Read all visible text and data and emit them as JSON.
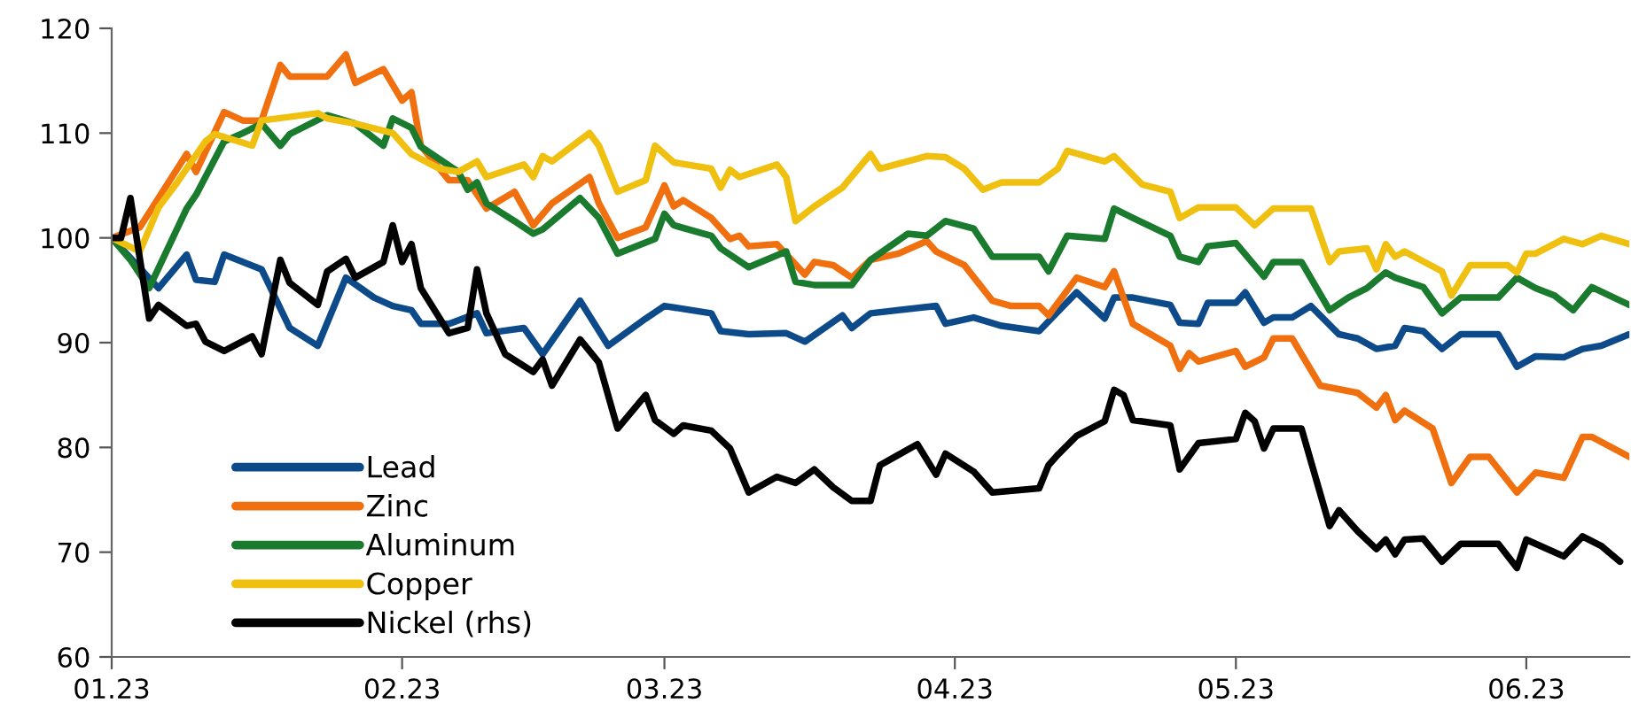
{
  "chart_data": {
    "type": "line",
    "xlim": [
      "2023-01-01",
      "2023-06-12"
    ],
    "xticks": [
      {
        "value": "2023-01-01",
        "label": "01.23"
      },
      {
        "value": "2023-02-01",
        "label": "02.23"
      },
      {
        "value": "2023-03-01",
        "label": "03.23"
      },
      {
        "value": "2023-04-01",
        "label": "04.23"
      },
      {
        "value": "2023-05-01",
        "label": "05.23"
      },
      {
        "value": "2023-06-01",
        "label": "06.23"
      }
    ],
    "ylim": [
      60,
      120
    ],
    "yticks": [
      60,
      70,
      80,
      90,
      100,
      110,
      120
    ],
    "grid": false,
    "legend": "bottom left",
    "marker": "none",
    "line_style": "solid",
    "series": [
      {
        "name": "Lead",
        "color": "#0d4a8a",
        "x": [
          "2023-01-01",
          "2023-01-06",
          "2023-01-09",
          "2023-01-10",
          "2023-01-12",
          "2023-01-13",
          "2023-01-17",
          "2023-01-20",
          "2023-01-23",
          "2023-01-26",
          "2023-01-29",
          "2023-01-31",
          "2023-02-02",
          "2023-02-03",
          "2023-02-06",
          "2023-02-09",
          "2023-02-10",
          "2023-02-14",
          "2023-02-16",
          "2023-02-20",
          "2023-02-23",
          "2023-02-27",
          "2023-03-01",
          "2023-03-06",
          "2023-03-07",
          "2023-03-10",
          "2023-03-14",
          "2023-03-16",
          "2023-03-20",
          "2023-03-21",
          "2023-03-23",
          "2023-03-30",
          "2023-03-31",
          "2023-04-03",
          "2023-04-06",
          "2023-04-10",
          "2023-04-14",
          "2023-04-17",
          "2023-04-18",
          "2023-04-20",
          "2023-04-24",
          "2023-04-25",
          "2023-04-27",
          "2023-04-28",
          "2023-05-01",
          "2023-05-02",
          "2023-05-04",
          "2023-05-05",
          "2023-05-07",
          "2023-05-09",
          "2023-05-12",
          "2023-05-14",
          "2023-05-16",
          "2023-05-18",
          "2023-05-19",
          "2023-05-21",
          "2023-05-23",
          "2023-05-25",
          "2023-05-29",
          "2023-05-31",
          "2023-06-02",
          "2023-06-05",
          "2023-06-07",
          "2023-06-09",
          "2023-06-12"
        ],
        "values": [
          100,
          95.2,
          98.4,
          96,
          95.8,
          98.4,
          97,
          91.4,
          89.7,
          96.2,
          94.3,
          93.5,
          93.1,
          91.8,
          91.8,
          92.8,
          90.9,
          91.4,
          88.9,
          94,
          89.7,
          92.3,
          93.5,
          92.8,
          91.1,
          90.8,
          90.9,
          90.1,
          92.6,
          91.4,
          92.8,
          93.5,
          91.8,
          92.4,
          91.6,
          91.1,
          94.8,
          92.3,
          94.3,
          94.3,
          93.6,
          91.9,
          91.8,
          93.8,
          93.8,
          94.8,
          91.9,
          92.4,
          92.4,
          93.5,
          90.8,
          90.4,
          89.4,
          89.7,
          91.4,
          91.1,
          89.4,
          90.8,
          90.8,
          87.7,
          88.7,
          88.6,
          89.4,
          89.7,
          90.8
        ]
      },
      {
        "name": "Zinc",
        "color": "#f07010",
        "x": [
          "2023-01-01",
          "2023-01-04",
          "2023-01-09",
          "2023-01-10",
          "2023-01-13",
          "2023-01-15",
          "2023-01-17",
          "2023-01-19",
          "2023-01-20",
          "2023-01-24",
          "2023-01-26",
          "2023-01-27",
          "2023-01-30",
          "2023-02-01",
          "2023-02-02",
          "2023-02-03",
          "2023-02-06",
          "2023-02-08",
          "2023-02-10",
          "2023-02-13",
          "2023-02-15",
          "2023-02-17",
          "2023-02-21",
          "2023-02-22",
          "2023-02-24",
          "2023-02-27",
          "2023-03-01",
          "2023-03-02",
          "2023-03-03",
          "2023-03-06",
          "2023-03-08",
          "2023-03-09",
          "2023-03-10",
          "2023-03-13",
          "2023-03-16",
          "2023-03-17",
          "2023-03-19",
          "2023-03-21",
          "2023-03-23",
          "2023-03-26",
          "2023-03-29",
          "2023-03-30",
          "2023-04-02",
          "2023-04-05",
          "2023-04-07",
          "2023-04-10",
          "2023-04-11",
          "2023-04-14",
          "2023-04-17",
          "2023-04-18",
          "2023-04-20",
          "2023-04-24",
          "2023-04-25",
          "2023-04-26",
          "2023-04-27",
          "2023-05-01",
          "2023-05-02",
          "2023-05-04",
          "2023-05-05",
          "2023-05-07",
          "2023-05-10",
          "2023-05-14",
          "2023-05-16",
          "2023-05-17",
          "2023-05-18",
          "2023-05-19",
          "2023-05-22",
          "2023-05-24",
          "2023-05-26",
          "2023-05-28",
          "2023-05-31",
          "2023-06-02",
          "2023-06-05",
          "2023-06-07",
          "2023-06-08",
          "2023-06-12"
        ],
        "values": [
          100,
          101,
          108,
          106.3,
          112,
          111.2,
          111.2,
          116.5,
          115.4,
          115.4,
          117.5,
          114.8,
          116.1,
          113.1,
          113.9,
          108.8,
          105.5,
          105.5,
          102.8,
          104.4,
          101.2,
          103.3,
          105.8,
          103.3,
          100,
          101,
          105,
          103,
          103.6,
          101.9,
          99.9,
          100.2,
          99.2,
          99.4,
          96.5,
          97.7,
          97.4,
          96.2,
          97.9,
          98.5,
          99.7,
          98.7,
          97.4,
          94,
          93.5,
          93.5,
          92.6,
          96.2,
          95.3,
          96.8,
          91.8,
          89.7,
          87.5,
          89,
          88.2,
          89.2,
          87.7,
          88.6,
          90.4,
          90.4,
          85.9,
          85.2,
          83.8,
          85,
          82.6,
          83.5,
          81.8,
          76.6,
          79.1,
          79.1,
          75.7,
          77.6,
          77.1,
          81,
          81,
          79.1
        ]
      },
      {
        "name": "Aluminum",
        "color": "#1a7a2e",
        "x": [
          "2023-01-01",
          "2023-01-03",
          "2023-01-05",
          "2023-01-09",
          "2023-01-10",
          "2023-01-13",
          "2023-01-15",
          "2023-01-17",
          "2023-01-19",
          "2023-01-20",
          "2023-01-24",
          "2023-01-27",
          "2023-01-30",
          "2023-01-31",
          "2023-02-02",
          "2023-02-03",
          "2023-02-07",
          "2023-02-08",
          "2023-02-09",
          "2023-02-10",
          "2023-02-13",
          "2023-02-15",
          "2023-02-16",
          "2023-02-20",
          "2023-02-22",
          "2023-02-24",
          "2023-02-28",
          "2023-03-01",
          "2023-03-02",
          "2023-03-06",
          "2023-03-07",
          "2023-03-10",
          "2023-03-14",
          "2023-03-15",
          "2023-03-17",
          "2023-03-21",
          "2023-03-23",
          "2023-03-27",
          "2023-03-29",
          "2023-03-31",
          "2023-04-03",
          "2023-04-05",
          "2023-04-10",
          "2023-04-11",
          "2023-04-13",
          "2023-04-17",
          "2023-04-18",
          "2023-04-20",
          "2023-04-24",
          "2023-04-25",
          "2023-04-27",
          "2023-04-28",
          "2023-05-01",
          "2023-05-04",
          "2023-05-05",
          "2023-05-08",
          "2023-05-11",
          "2023-05-13",
          "2023-05-15",
          "2023-05-17",
          "2023-05-18",
          "2023-05-21",
          "2023-05-23",
          "2023-05-25",
          "2023-05-29",
          "2023-05-31",
          "2023-06-02",
          "2023-06-04",
          "2023-06-06",
          "2023-06-08",
          "2023-06-12"
        ],
        "values": [
          100,
          97.9,
          95.2,
          102.8,
          104.1,
          109.2,
          110,
          110.9,
          108.8,
          109.9,
          111.7,
          110.9,
          108.8,
          111.4,
          110.5,
          108.7,
          106.3,
          104.6,
          105.3,
          103.3,
          101.6,
          100.4,
          100.8,
          103.8,
          101.9,
          98.5,
          99.9,
          102.3,
          101.2,
          100.2,
          99,
          97.2,
          98.7,
          95.8,
          95.5,
          95.5,
          97.9,
          100.4,
          100.2,
          101.6,
          100.9,
          98.2,
          98.2,
          96.8,
          100.2,
          99.9,
          102.8,
          101.9,
          100.2,
          98.2,
          97.7,
          99.2,
          99.5,
          96.3,
          97.7,
          97.7,
          93.1,
          94.3,
          95.2,
          96.7,
          96.2,
          95.3,
          92.8,
          94.3,
          94.3,
          96.2,
          95.2,
          94.5,
          93.1,
          95.3,
          93.6
        ]
      },
      {
        "name": "Copper",
        "color": "#f0c010",
        "x": [
          "2023-01-01",
          "2023-01-04",
          "2023-01-06",
          "2023-01-08",
          "2023-01-11",
          "2023-01-12",
          "2023-01-16",
          "2023-01-17",
          "2023-01-23",
          "2023-01-24",
          "2023-01-27",
          "2023-01-31",
          "2023-02-02",
          "2023-02-05",
          "2023-02-07",
          "2023-02-09",
          "2023-02-10",
          "2023-02-14",
          "2023-02-15",
          "2023-02-16",
          "2023-02-17",
          "2023-02-21",
          "2023-02-22",
          "2023-02-24",
          "2023-02-27",
          "2023-02-28",
          "2023-03-02",
          "2023-03-06",
          "2023-03-07",
          "2023-03-08",
          "2023-03-09",
          "2023-03-13",
          "2023-03-14",
          "2023-03-15",
          "2023-03-17",
          "2023-03-20",
          "2023-03-23",
          "2023-03-24",
          "2023-03-29",
          "2023-03-31",
          "2023-04-02",
          "2023-04-04",
          "2023-04-06",
          "2023-04-10",
          "2023-04-12",
          "2023-04-13",
          "2023-04-17",
          "2023-04-18",
          "2023-04-21",
          "2023-04-24",
          "2023-04-25",
          "2023-04-27",
          "2023-05-01",
          "2023-05-03",
          "2023-05-05",
          "2023-05-09",
          "2023-05-11",
          "2023-05-12",
          "2023-05-15",
          "2023-05-16",
          "2023-05-17",
          "2023-05-18",
          "2023-05-19",
          "2023-05-23",
          "2023-05-24",
          "2023-05-26",
          "2023-05-30",
          "2023-05-31",
          "2023-06-01",
          "2023-06-02",
          "2023-06-05",
          "2023-06-07",
          "2023-06-09",
          "2023-06-12"
        ],
        "values": [
          100,
          98.7,
          102.9,
          105.3,
          109.2,
          109.9,
          108.8,
          111.2,
          111.9,
          111.4,
          110.9,
          110,
          108,
          106.6,
          106.3,
          107.3,
          105.8,
          107,
          105.8,
          107.8,
          107.3,
          110,
          108.8,
          104.4,
          105.5,
          108.8,
          107.2,
          106.6,
          104.8,
          106.5,
          105.8,
          107,
          105.8,
          101.6,
          103,
          104.8,
          108,
          106.6,
          107.8,
          107.7,
          106.6,
          104.6,
          105.3,
          105.3,
          106.6,
          108.3,
          107.3,
          107.8,
          105.1,
          104.4,
          101.9,
          102.9,
          102.9,
          101.2,
          102.8,
          102.8,
          97.7,
          98.7,
          99,
          97,
          99.4,
          98.2,
          98.7,
          96.8,
          94.5,
          97.4,
          97.4,
          96.7,
          98.5,
          98.5,
          99.9,
          99.4,
          100.2,
          99.4
        ]
      },
      {
        "name": "Nickel (rhs)",
        "color": "#000000",
        "x": [
          "2023-01-01",
          "2023-01-02",
          "2023-01-03",
          "2023-01-05",
          "2023-01-06",
          "2023-01-09",
          "2023-01-10",
          "2023-01-11",
          "2023-01-13",
          "2023-01-16",
          "2023-01-17",
          "2023-01-19",
          "2023-01-20",
          "2023-01-23",
          "2023-01-24",
          "2023-01-26",
          "2023-01-27",
          "2023-01-30",
          "2023-01-31",
          "2023-02-01",
          "2023-02-02",
          "2023-02-03",
          "2023-02-06",
          "2023-02-08",
          "2023-02-09",
          "2023-02-10",
          "2023-02-12",
          "2023-02-15",
          "2023-02-16",
          "2023-02-17",
          "2023-02-20",
          "2023-02-22",
          "2023-02-24",
          "2023-02-27",
          "2023-02-28",
          "2023-03-02",
          "2023-03-03",
          "2023-03-06",
          "2023-03-08",
          "2023-03-10",
          "2023-03-13",
          "2023-03-15",
          "2023-03-17",
          "2023-03-19",
          "2023-03-21",
          "2023-03-23",
          "2023-03-24",
          "2023-03-26",
          "2023-03-28",
          "2023-03-30",
          "2023-03-31",
          "2023-04-03",
          "2023-04-05",
          "2023-04-10",
          "2023-04-11",
          "2023-04-12",
          "2023-04-14",
          "2023-04-17",
          "2023-04-18",
          "2023-04-19",
          "2023-04-20",
          "2023-04-24",
          "2023-04-25",
          "2023-04-27",
          "2023-05-01",
          "2023-05-02",
          "2023-05-03",
          "2023-05-04",
          "2023-05-05",
          "2023-05-08",
          "2023-05-11",
          "2023-05-12",
          "2023-05-14",
          "2023-05-16",
          "2023-05-17",
          "2023-05-18",
          "2023-05-19",
          "2023-05-21",
          "2023-05-23",
          "2023-05-25",
          "2023-05-29",
          "2023-05-31",
          "2023-06-01",
          "2023-06-05",
          "2023-06-07",
          "2023-06-09",
          "2023-06-11"
        ],
        "values": [
          100,
          100,
          103.8,
          92.3,
          93.6,
          91.6,
          91.8,
          90.1,
          89.2,
          90.6,
          88.9,
          97.9,
          95.7,
          93.6,
          96.8,
          98,
          96.2,
          97.7,
          101.2,
          97.7,
          99.4,
          95.2,
          90.9,
          91.4,
          97,
          92.8,
          88.9,
          87.2,
          88.4,
          85.9,
          90.3,
          88.1,
          81.8,
          85,
          82.6,
          81.3,
          82.1,
          81.6,
          79.9,
          75.7,
          77.2,
          76.6,
          77.9,
          76.2,
          74.9,
          74.9,
          78.3,
          79.3,
          80.3,
          77.4,
          79.4,
          77.7,
          75.7,
          76.1,
          78.3,
          79.3,
          81.1,
          82.5,
          85.5,
          85,
          82.6,
          82.1,
          77.9,
          80.4,
          80.8,
          83.3,
          82.5,
          79.9,
          81.8,
          81.8,
          72.5,
          74,
          72,
          70.3,
          71.2,
          69.8,
          71.2,
          71.3,
          69.1,
          70.8,
          70.8,
          68.5,
          71.2,
          69.6,
          71.5,
          70.6,
          69.1
        ]
      }
    ]
  }
}
